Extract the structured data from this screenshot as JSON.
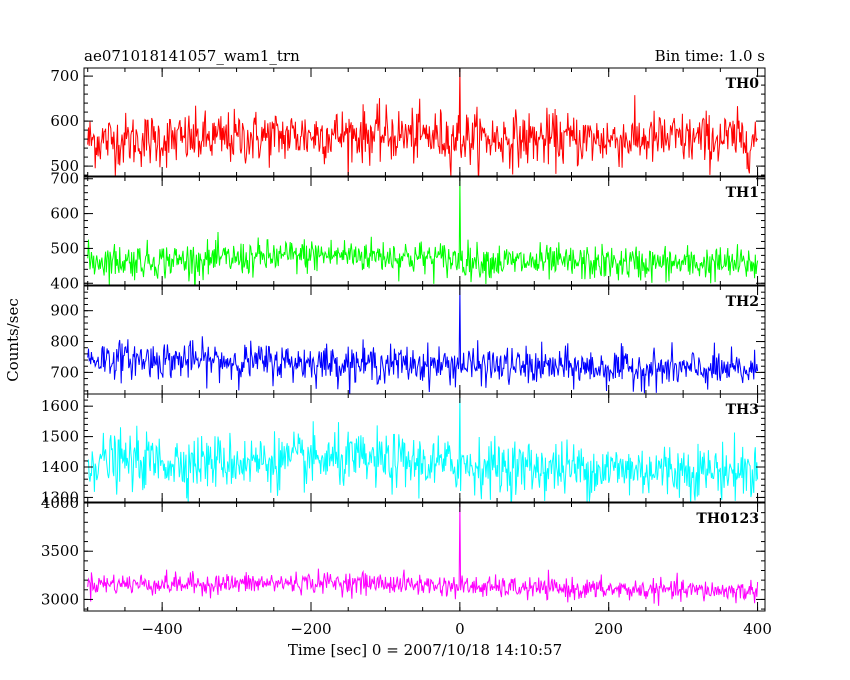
{
  "chart_data": {
    "type": "line",
    "title": "ae071018141057_wam1_trn",
    "bin_time_label": "Bin time: 1.0 s",
    "xlabel": "Time [sec] 0 = 2007/10/18 14:10:57",
    "ylabel": "Counts/sec",
    "xlim": [
      -505,
      410
    ],
    "x_ticks": [
      -400,
      -200,
      0,
      200,
      400
    ],
    "x_tick_labels": [
      "−400",
      "−200",
      "0",
      "200",
      "400"
    ],
    "x_data_range": [
      -500,
      400
    ],
    "panels": [
      {
        "name": "TH0",
        "color": "#ff0000",
        "ylim": [
          478,
          718
        ],
        "y_ticks": [
          500,
          600,
          700
        ],
        "y_tick_labels": [
          "500",
          "600",
          "700"
        ],
        "mean": 557,
        "mean_end": 560,
        "mean_bump": 12,
        "noise_sd": 30,
        "spike": {
          "x": 0,
          "y": 718
        }
      },
      {
        "name": "TH1",
        "color": "#00ff00",
        "ylim": [
          395,
          705
        ],
        "y_ticks": [
          400,
          500,
          600,
          700
        ],
        "y_tick_labels": [
          "400",
          "500",
          "600",
          "700"
        ],
        "mean": 465,
        "mean_end": 455,
        "mean_bump": 20,
        "noise_sd": 25,
        "spike": {
          "x": 0,
          "y": 700
        }
      },
      {
        "name": "TH2",
        "color": "#0000ff",
        "ylim": [
          630,
          980
        ],
        "y_ticks": [
          700,
          800,
          900
        ],
        "y_tick_labels": [
          "700",
          "800",
          "900"
        ],
        "mean": 745,
        "mean_end": 705,
        "mean_bump": 0,
        "noise_sd": 30,
        "spike": {
          "x": 0,
          "y": 975
        }
      },
      {
        "name": "TH3",
        "color": "#00ffff",
        "ylim": [
          1285,
          1640
        ],
        "y_ticks": [
          1300,
          1400,
          1500,
          1600
        ],
        "y_tick_labels": [
          "1300",
          "1400",
          "1500",
          "1600"
        ],
        "mean": 1420,
        "mean_end": 1385,
        "mean_bump": 15,
        "noise_sd": 45,
        "spike": {
          "x": 0,
          "y": 1630
        }
      },
      {
        "name": "TH0123",
        "color": "#ff00ff",
        "ylim": [
          2880,
          4000
        ],
        "y_ticks": [
          3000,
          3500,
          4000
        ],
        "y_tick_labels": [
          "3000",
          "3500",
          "4000"
        ],
        "mean": 3165,
        "mean_end": 3085,
        "mean_bump": 40,
        "noise_sd": 55,
        "spike": {
          "x": 0,
          "y": 4000
        }
      }
    ]
  }
}
